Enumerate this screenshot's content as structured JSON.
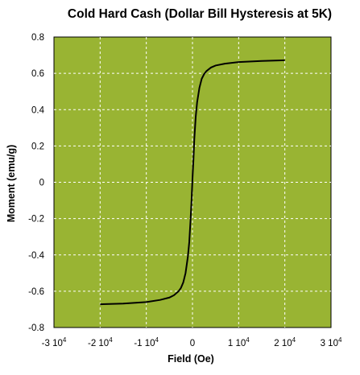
{
  "chart_data": {
    "type": "line",
    "title": "Cold Hard Cash (Dollar Bill Hysteresis at 5K)",
    "xlabel": "Field (Oe)",
    "ylabel": "Moment (emu/g)",
    "xlim": [
      -30000,
      30000
    ],
    "ylim": [
      -0.8,
      0.8
    ],
    "grid": true,
    "background_color": "#99b433",
    "grid_color": "#ffffff",
    "line_color": "#000000",
    "x_ticks": [
      {
        "value": -30000,
        "mantissa": "-3 10",
        "exp": "4"
      },
      {
        "value": -20000,
        "mantissa": "-2 10",
        "exp": "4"
      },
      {
        "value": -10000,
        "mantissa": "-1 10",
        "exp": "4"
      },
      {
        "value": 0,
        "mantissa": "0",
        "exp": ""
      },
      {
        "value": 10000,
        "mantissa": "1 10",
        "exp": "4"
      },
      {
        "value": 20000,
        "mantissa": "2 10",
        "exp": "4"
      },
      {
        "value": 30000,
        "mantissa": "3 10",
        "exp": "4"
      }
    ],
    "y_ticks": [
      {
        "value": 0.8,
        "label": "0.8"
      },
      {
        "value": 0.6,
        "label": "0.6"
      },
      {
        "value": 0.4,
        "label": "0.4"
      },
      {
        "value": 0.2,
        "label": "0.2"
      },
      {
        "value": 0,
        "label": "0"
      },
      {
        "value": -0.2,
        "label": "-0.2"
      },
      {
        "value": -0.4,
        "label": "-0.4"
      },
      {
        "value": -0.6,
        "label": "-0.6"
      },
      {
        "value": -0.8,
        "label": "-0.8"
      }
    ],
    "series": [
      {
        "x": [
          -20000,
          -15000,
          -10000,
          -7000,
          -5000,
          -4000,
          -3000,
          -2500,
          -2000,
          -1500,
          -1000,
          -700,
          -400,
          -200,
          0,
          200,
          400,
          700,
          1000,
          1500,
          2000,
          2500,
          3000,
          4000,
          5000,
          7000,
          10000,
          15000,
          20000
        ],
        "y": [
          -0.672,
          -0.668,
          -0.66,
          -0.648,
          -0.635,
          -0.622,
          -0.6,
          -0.582,
          -0.552,
          -0.5,
          -0.41,
          -0.33,
          -0.2,
          -0.1,
          0.02,
          0.12,
          0.24,
          0.36,
          0.44,
          0.52,
          0.57,
          0.595,
          0.612,
          0.632,
          0.643,
          0.653,
          0.662,
          0.668,
          0.672
        ]
      }
    ]
  }
}
